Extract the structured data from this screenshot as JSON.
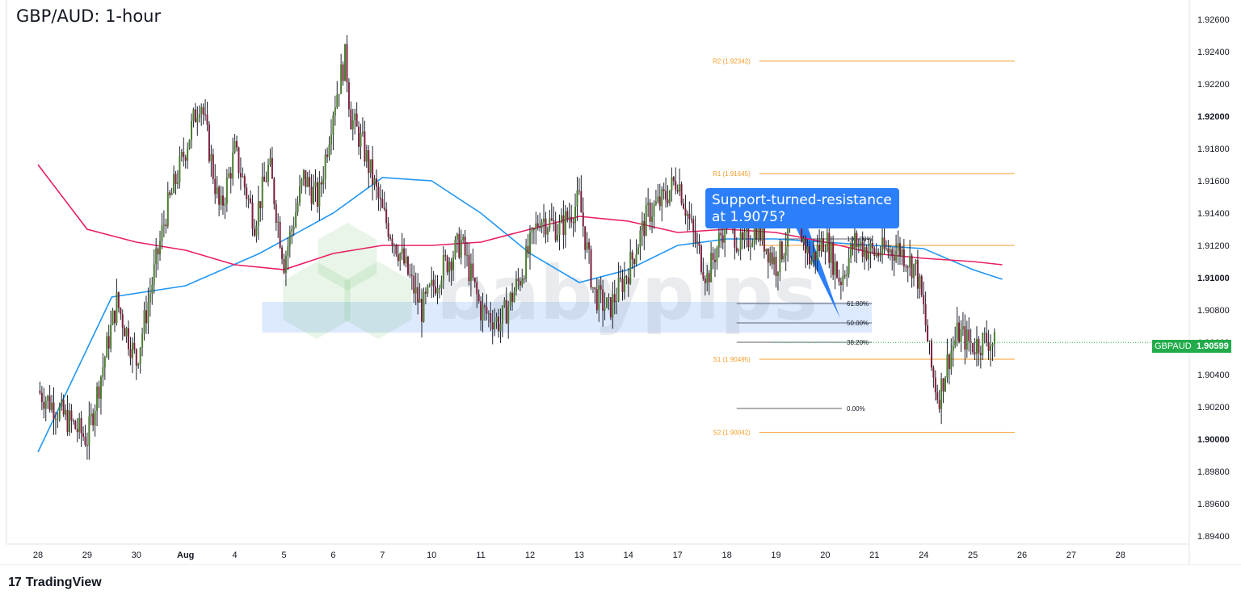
{
  "title": "GBP/AUD: 1-hour",
  "callout": {
    "line1": "Support-turned-resistance",
    "line2": "at 1.9075?"
  },
  "footer": {
    "brand": "TradingView",
    "logo_icon": "tradingview-logo-icon"
  },
  "watermark": {
    "text": "babypips",
    "icon": "babypips-hexagon-logo"
  },
  "price_tag": {
    "symbol": "GBPAUD",
    "value": "1.90599",
    "color": "#22ab4b"
  },
  "chart_data": {
    "type": "candlestick",
    "symbol": "GBPAUD",
    "timeframe": "1-hour",
    "ylim": [
      1.8935,
      1.9272
    ],
    "y_ticks": [
      "1.89400",
      "1.89600",
      "1.89800",
      "1.90000",
      "1.90200",
      "1.90400",
      "1.90600",
      "1.90800",
      "1.91000",
      "1.91200",
      "1.91400",
      "1.91600",
      "1.91800",
      "1.92000",
      "1.92200",
      "1.92400",
      "1.92600"
    ],
    "x_ticks": [
      "28",
      "29",
      "30",
      "Aug",
      "4",
      "5",
      "6",
      "7",
      "10",
      "11",
      "12",
      "13",
      "14",
      "17",
      "18",
      "19",
      "20",
      "21",
      "24",
      "25",
      "26",
      "27",
      "28"
    ],
    "price_path": [
      [
        0,
        1.903
      ],
      [
        1.0,
        1.9
      ],
      [
        1.6,
        1.9085
      ],
      [
        2.0,
        1.9048
      ],
      [
        2.6,
        1.914
      ],
      [
        3.0,
        1.918
      ],
      [
        3.3,
        1.9212
      ],
      [
        3.7,
        1.914
      ],
      [
        4.0,
        1.9178
      ],
      [
        4.4,
        1.9135
      ],
      [
        4.7,
        1.917
      ],
      [
        5.0,
        1.911
      ],
      [
        5.4,
        1.9162
      ],
      [
        5.7,
        1.9148
      ],
      [
        6.0,
        1.9205
      ],
      [
        6.25,
        1.9237
      ],
      [
        6.35,
        1.92
      ],
      [
        6.6,
        1.9182
      ],
      [
        7.0,
        1.914
      ],
      [
        7.4,
        1.9112
      ],
      [
        7.8,
        1.908
      ],
      [
        8.2,
        1.9105
      ],
      [
        8.6,
        1.9122
      ],
      [
        9.0,
        1.908
      ],
      [
        9.4,
        1.9072
      ],
      [
        9.8,
        1.91
      ],
      [
        10.2,
        1.9138
      ],
      [
        10.6,
        1.913
      ],
      [
        11.0,
        1.9148
      ],
      [
        11.3,
        1.909
      ],
      [
        11.6,
        1.908
      ],
      [
        12.0,
        1.9105
      ],
      [
        12.4,
        1.914
      ],
      [
        12.7,
        1.9148
      ],
      [
        13.0,
        1.9162
      ],
      [
        13.3,
        1.9128
      ],
      [
        13.6,
        1.91
      ],
      [
        14.0,
        1.9138
      ],
      [
        14.3,
        1.9118
      ],
      [
        14.6,
        1.9132
      ],
      [
        15.0,
        1.9108
      ],
      [
        15.4,
        1.9138
      ],
      [
        15.7,
        1.911
      ],
      [
        16.0,
        1.9125
      ],
      [
        16.3,
        1.9098
      ],
      [
        16.6,
        1.9122
      ],
      [
        17.0,
        1.9115
      ],
      [
        17.5,
        1.9118
      ],
      [
        17.85,
        1.9105
      ],
      [
        18.0,
        1.908
      ],
      [
        18.15,
        1.9045
      ],
      [
        18.3,
        1.9025
      ],
      [
        18.5,
        1.905
      ],
      [
        18.7,
        1.9066
      ],
      [
        19.0,
        1.9058
      ],
      [
        19.3,
        1.9062
      ],
      [
        19.45,
        1.9058
      ]
    ],
    "series": [
      {
        "name": "",
        "color": "#2196f3",
        "points": [
          [
            0,
            1.8992
          ],
          [
            1.5,
            1.9088
          ],
          [
            3.0,
            1.9095
          ],
          [
            4.5,
            1.9115
          ],
          [
            6.0,
            1.914
          ],
          [
            7.0,
            1.9162
          ],
          [
            8.0,
            1.916
          ],
          [
            9.0,
            1.914
          ],
          [
            10.0,
            1.9115
          ],
          [
            11.0,
            1.9097
          ],
          [
            12.0,
            1.9105
          ],
          [
            13.0,
            1.912
          ],
          [
            14.0,
            1.9124
          ],
          [
            15.0,
            1.9124
          ],
          [
            16.0,
            1.9122
          ],
          [
            17.0,
            1.912
          ],
          [
            18.0,
            1.9118
          ],
          [
            19.0,
            1.9105
          ],
          [
            19.6,
            1.9099
          ]
        ]
      },
      {
        "name": "",
        "color": "#e91e63",
        "points": [
          [
            0,
            1.917
          ],
          [
            1.0,
            1.913
          ],
          [
            2.0,
            1.9122
          ],
          [
            3.0,
            1.9117
          ],
          [
            4.0,
            1.9108
          ],
          [
            5.0,
            1.9105
          ],
          [
            6.0,
            1.9115
          ],
          [
            7.0,
            1.912
          ],
          [
            8.0,
            1.912
          ],
          [
            9.0,
            1.9122
          ],
          [
            10.0,
            1.913
          ],
          [
            11.0,
            1.9138
          ],
          [
            12.0,
            1.9135
          ],
          [
            13.0,
            1.9128
          ],
          [
            14.0,
            1.913
          ],
          [
            15.0,
            1.9128
          ],
          [
            16.0,
            1.9122
          ],
          [
            17.0,
            1.9115
          ],
          [
            18.0,
            1.9112
          ],
          [
            19.0,
            1.911
          ],
          [
            19.6,
            1.9108
          ]
        ]
      }
    ],
    "pivots": [
      {
        "label": "R2 (1.92342)",
        "value": 1.92342
      },
      {
        "label": "R1 (1.91645)",
        "value": 1.91645
      },
      {
        "label": "S1 (1.90495)",
        "value": 1.90495
      },
      {
        "label": "S2 (1.90042)",
        "value": 1.90042
      }
    ],
    "pivot_color": "#f59d2a",
    "pivot_extra_level": 1.912,
    "pivot_x_range": [
      14.2,
      19.85
    ],
    "fib": [
      {
        "label": "100.00%",
        "value": 1.9124
      },
      {
        "label": "61.80%",
        "value": 1.9084
      },
      {
        "label": "50.00%",
        "value": 1.9072
      },
      {
        "label": "38.20%",
        "value": 1.906
      },
      {
        "label": "0.00%",
        "value": 1.9019
      }
    ],
    "fib_x_range": [
      14.2,
      17.5
    ],
    "zone": {
      "color": "#2d7ff9",
      "from": 1.9066,
      "to": 1.9085,
      "x_range": [
        6.0,
        17.7
      ]
    },
    "callout_anchor": [
      16.3,
      1.9075
    ],
    "last_price": 1.90599
  }
}
